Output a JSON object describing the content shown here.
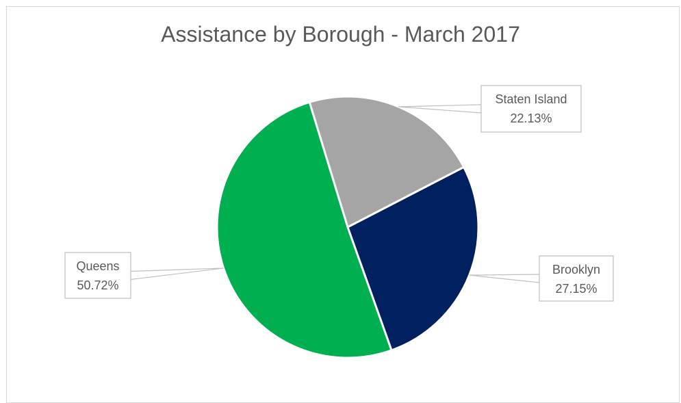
{
  "chart_data": {
    "type": "pie",
    "title": "Assistance by Borough - March 2017",
    "legend": "none",
    "slices": [
      {
        "label": "Staten Island",
        "value": 22.13,
        "display": "22.13%",
        "color": "#a5a5a5"
      },
      {
        "label": "Brooklyn",
        "value": 27.15,
        "display": "27.15%",
        "color": "#002060"
      },
      {
        "label": "Queens",
        "value": 50.72,
        "display": "50.72%",
        "color": "#00b050"
      }
    ]
  }
}
